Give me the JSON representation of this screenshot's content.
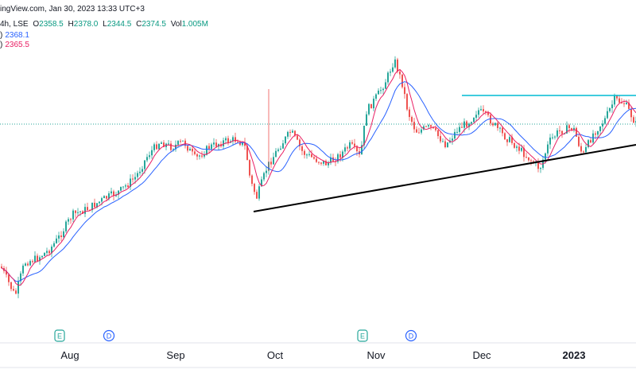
{
  "header": {
    "source": "ingView.com, Jan 30, 2023 13:33 UTC+3",
    "interval": "4h, LSE",
    "ohlc": {
      "open_label": "O",
      "open": "2358.5",
      "high_label": "H",
      "high": "2378.0",
      "low_label": "L",
      "low": "2344.5",
      "close_label": "C",
      "close": "2374.5",
      "vol_label": "Vol",
      "vol": "1.005M"
    },
    "ma1": {
      "prefix": ")",
      "value": "2368.1",
      "color": "#2962ff"
    },
    "ma2": {
      "prefix": ")",
      "value": "2365.5",
      "color": "#e91e63"
    }
  },
  "colors": {
    "up": "#26a69a",
    "down": "#ef5350",
    "ma_blue": "#2962ff",
    "ma_red": "#e91e63",
    "resistance": "#00bcd4",
    "trendline": "#000000",
    "price_line": "#26a69a"
  },
  "chart_data": {
    "type": "candlestick",
    "x_axis_labels": [
      "Aug",
      "Sep",
      "Oct",
      "Nov",
      "Dec",
      "2023"
    ],
    "events": [
      {
        "label": "E",
        "month": "Aug",
        "kind": "earnings"
      },
      {
        "label": "D",
        "month": "Aug",
        "kind": "dividend"
      },
      {
        "label": "E",
        "month": "Nov",
        "kind": "earnings"
      },
      {
        "label": "D",
        "month": "Nov",
        "kind": "dividend"
      }
    ],
    "last_values": {
      "open": 2358.5,
      "high": 2378.0,
      "low": 2344.5,
      "close": 2374.5,
      "ma_blue": 2368.1,
      "ma_red": 2365.5
    },
    "annotations": [
      "horizontal resistance line",
      "rising support trendline"
    ],
    "grid": false
  }
}
